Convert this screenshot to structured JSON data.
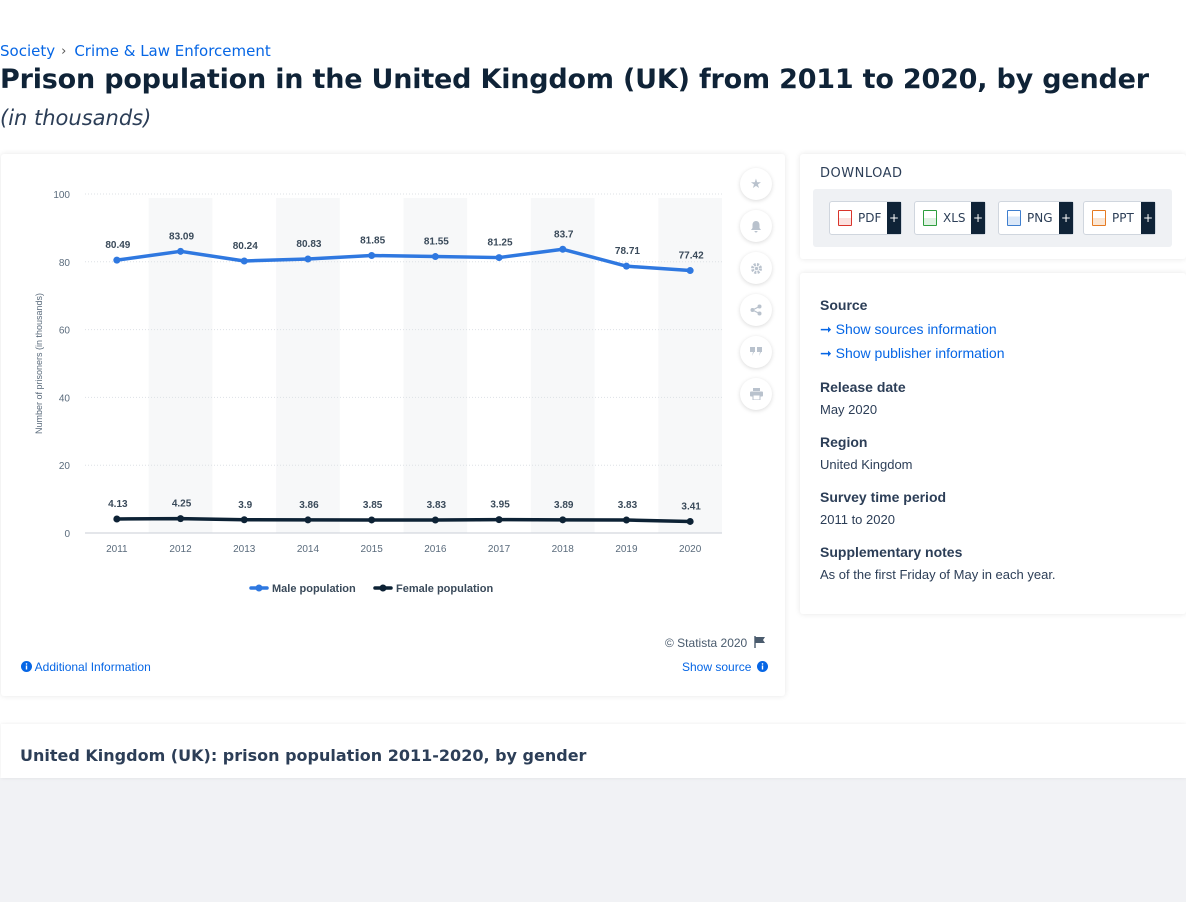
{
  "breadcrumb": {
    "items": [
      "Society",
      "Crime & Law Enforcement"
    ],
    "separator": "›"
  },
  "page": {
    "title": "Prison population in the United Kingdom (UK) from 2011 to 2020, by gender",
    "subtitle": "(in thousands)"
  },
  "chart_data": {
    "type": "line",
    "x": [
      "2011",
      "2012",
      "2013",
      "2014",
      "2015",
      "2016",
      "2017",
      "2018",
      "2019",
      "2020"
    ],
    "series": [
      {
        "name": "Male population",
        "color": "#2f78e0",
        "values": [
          80.49,
          83.09,
          80.24,
          80.83,
          81.85,
          81.55,
          81.25,
          83.7,
          78.71,
          77.42
        ]
      },
      {
        "name": "Female population",
        "color": "#0d2235",
        "values": [
          4.13,
          4.25,
          3.9,
          3.86,
          3.85,
          3.83,
          3.95,
          3.89,
          3.83,
          3.41
        ]
      }
    ],
    "ylabel": "Number of prisoners (in thousands)",
    "ylim": [
      0,
      100
    ],
    "yticks": [
      0,
      20,
      40,
      60,
      80,
      100
    ],
    "grid": true,
    "legend": "bottom-center"
  },
  "chart_footer": {
    "credit": "© Statista 2020",
    "additional_info": "Additional Information",
    "show_source": "Show source"
  },
  "download": {
    "title": "DOWNLOAD",
    "buttons": [
      {
        "label": "PDF",
        "icon": "pdf-file-icon",
        "color": "#d9342b"
      },
      {
        "label": "XLS",
        "icon": "xls-file-icon",
        "color": "#2e9e3e"
      },
      {
        "label": "PNG",
        "icon": "png-file-icon",
        "color": "#3f7fcf"
      },
      {
        "label": "PPT",
        "icon": "ppt-file-icon",
        "color": "#e57b23"
      }
    ],
    "plus": "+"
  },
  "info": {
    "source_label": "Source",
    "show_sources": "Show sources information",
    "show_publisher": "Show publisher information",
    "release_label": "Release date",
    "release_value": "May 2020",
    "region_label": "Region",
    "region_value": "United Kingdom",
    "survey_label": "Survey time period",
    "survey_value": "2011 to 2020",
    "notes_label": "Supplementary notes",
    "notes_value": "As of the first Friday of May in each year."
  },
  "bottom": {
    "title": "United Kingdom (UK): prison population 2011-2020, by gender"
  },
  "colors": {
    "accent": "#0666e5",
    "male": "#2f78e0",
    "female": "#0d2235"
  }
}
